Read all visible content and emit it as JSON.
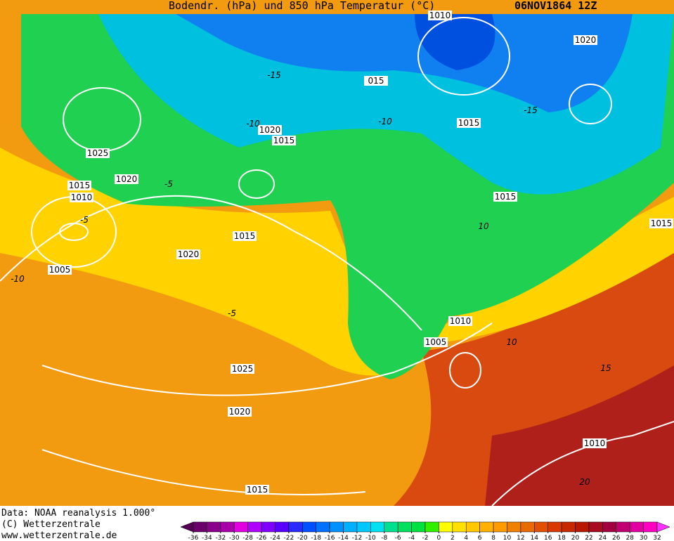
{
  "header": {
    "title": "Bodendr. (hPa) und 850 hPa Temperatur (°C)",
    "date": "06NOV1864 12Z"
  },
  "footer": {
    "source": "Data: NOAA reanalysis 1.000°",
    "copyright": "(C) Wetterzentrale",
    "url": "www.wetterzentrale.de"
  },
  "isobar_labels": [
    "1010",
    "1020",
    "015",
    "1015",
    "1020",
    "1015",
    "1025",
    "1020",
    "1015",
    "1010",
    "1015",
    "1015",
    "1015",
    "1020",
    "1005",
    "1010",
    "1005",
    "1025",
    "1020",
    "1010",
    "1015"
  ],
  "isotherm_labels": [
    "-15",
    "-10",
    "-10",
    "-15",
    "-5",
    "-5",
    "-10",
    "-5",
    "10",
    "10",
    "15",
    "20"
  ],
  "colorbar": {
    "ticks": [
      -36,
      -34,
      -32,
      -30,
      -28,
      -26,
      -24,
      -22,
      -20,
      -18,
      -16,
      -14,
      -12,
      -10,
      -8,
      -6,
      -4,
      -2,
      0,
      2,
      4,
      6,
      8,
      10,
      12,
      14,
      16,
      18,
      20,
      22,
      24,
      26,
      28,
      30,
      32
    ],
    "colors": [
      "#550055",
      "#6a006a",
      "#8a008a",
      "#a800a8",
      "#e000e0",
      "#b000ff",
      "#8000ff",
      "#5a00ff",
      "#2a2aff",
      "#0050ff",
      "#0070ff",
      "#0090ff",
      "#00b0ff",
      "#00c8ff",
      "#00e0f0",
      "#00e090",
      "#00e060",
      "#00e040",
      "#30f000",
      "#ffff00",
      "#ffe000",
      "#ffc800",
      "#ffb000",
      "#ff9a00",
      "#f08000",
      "#e86a00",
      "#e05000",
      "#d83a00",
      "#c82800",
      "#b81800",
      "#a80a20",
      "#a00040",
      "#c00070",
      "#e000a0",
      "#ff00c0",
      "#ff30ff"
    ]
  }
}
